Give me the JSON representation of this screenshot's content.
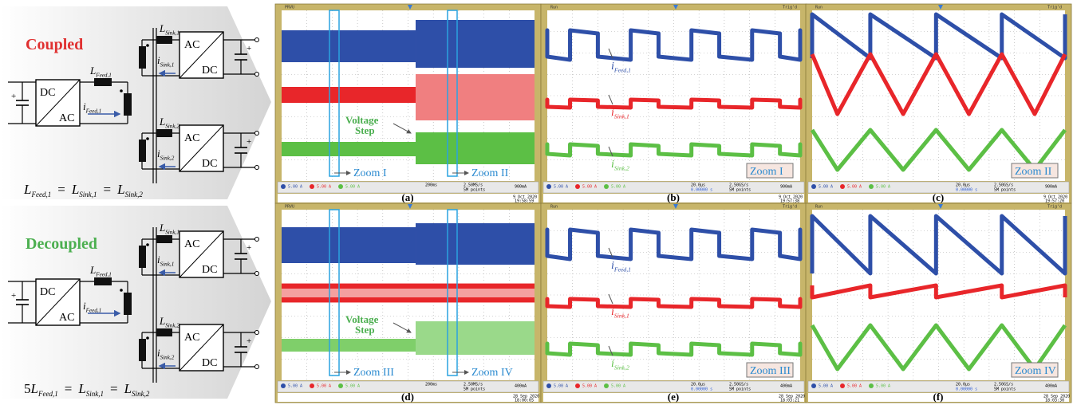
{
  "circuits": [
    {
      "title": "Coupled",
      "plus": "+",
      "source": {
        "top": "DC",
        "bottom": "AC"
      },
      "feed_inductor": {
        "sym": "L",
        "sub": "Feed,1"
      },
      "feed_current": {
        "sym": "i",
        "sub": "Feed,1"
      },
      "sinks": [
        {
          "inductor": {
            "sym": "L",
            "sub": "Sink,1"
          },
          "current": {
            "sym": "i",
            "sub": "Sink,1"
          },
          "top": "AC",
          "bottom": "DC"
        },
        {
          "inductor": {
            "sym": "L",
            "sub": "Sink,2"
          },
          "current": {
            "sym": "i",
            "sub": "Sink,2"
          },
          "top": "AC",
          "bottom": "DC"
        }
      ],
      "equation": {
        "relation": "=",
        "terms": [
          {
            "sym": "L",
            "sub": "Feed,1"
          },
          {
            "sym": "L",
            "sub": "Sink,1"
          },
          {
            "sym": "L",
            "sub": "Sink,2"
          }
        ]
      }
    },
    {
      "title": "Decoupled",
      "plus": "+",
      "source": {
        "top": "DC",
        "bottom": "AC"
      },
      "feed_inductor": {
        "sym": "L",
        "sub": "Feed,1"
      },
      "feed_current": {
        "sym": "i",
        "sub": "Feed,1"
      },
      "sinks": [
        {
          "inductor": {
            "sym": "L",
            "sub": "Sink,1"
          },
          "current": {
            "sym": "i",
            "sub": "Sink,1"
          },
          "top": "AC",
          "bottom": "DC"
        },
        {
          "inductor": {
            "sym": "L",
            "sub": "Sink,2"
          },
          "current": {
            "sym": "i",
            "sub": "Sink,2"
          },
          "top": "AC",
          "bottom": "DC"
        }
      ],
      "equation": {
        "coefficient": "5",
        "relation": "=",
        "terms": [
          {
            "sym": "L",
            "sub": "Feed,1"
          },
          {
            "sym": "L",
            "sub": "Sink,1"
          },
          {
            "sym": "L",
            "sub": "Sink,2"
          }
        ]
      }
    }
  ],
  "panels": [
    {
      "label": "(a)",
      "header": "PRVU",
      "channels": [
        "5.00 A",
        "5.00 A",
        "5.00 A"
      ],
      "timebase": "200ms",
      "rate": "2.50MS/s",
      "points": "5M points",
      "trigger": "900mA",
      "date": "9 Oct 2020",
      "time": "19:58:59",
      "zooms": [
        "Zoom I",
        "Zoom II"
      ],
      "annotation": [
        "Voltage",
        "Step"
      ]
    },
    {
      "label": "(b)",
      "header": "Run",
      "trig_state": "Trig'd",
      "channels": [
        "5.00 A",
        "5.00 A",
        "5.00 A"
      ],
      "timebase": "20.0µs",
      "offset": "0.00000 s",
      "rate": "2.50GS/s",
      "points": "5M points",
      "trigger": "900mA",
      "date": "9 Oct 2020",
      "time": "19:57:38",
      "zoom_tag": "Zoom I",
      "traces": [
        {
          "sym": "i",
          "sub": "Feed,1"
        },
        {
          "sym": "i",
          "sub": "Sink,1"
        },
        {
          "sym": "i",
          "sub": "Sink,2"
        }
      ]
    },
    {
      "label": "(c)",
      "header": "Run",
      "trig_state": "Trig'd",
      "channels": [
        "5.00 A",
        "5.00 A",
        "5.00 A"
      ],
      "timebase": "20.0µs",
      "offset": "0.00000 s",
      "rate": "2.50GS/s",
      "points": "5M points",
      "trigger": "900mA",
      "date": "9 Oct 2020",
      "time": "19:57:20",
      "zoom_tag": "Zoom II"
    },
    {
      "label": "(d)",
      "header": "PRVU",
      "channels": [
        "5.00 A",
        "5.00 A",
        "5.00 A"
      ],
      "timebase": "200ms",
      "rate": "2.50MS/s",
      "points": "5M points",
      "trigger": "400mA",
      "date": "28 Sep 2020",
      "time": "18:00:05",
      "zooms": [
        "Zoom III",
        "Zoom IV"
      ],
      "annotation": [
        "Voltage",
        "Step"
      ]
    },
    {
      "label": "(e)",
      "header": "Run",
      "trig_state": "Trig'd",
      "channels": [
        "5.00 A",
        "5.00 A",
        "5.00 A"
      ],
      "timebase": "20.0µs",
      "offset": "0.00000 s",
      "rate": "2.50GS/s",
      "points": "5M points",
      "trigger": "400mA",
      "date": "28 Sep 2020",
      "time": "18:03:21",
      "zoom_tag": "Zoom III",
      "traces": [
        {
          "sym": "i",
          "sub": "Feed,1"
        },
        {
          "sym": "i",
          "sub": "Sink,1"
        },
        {
          "sym": "i",
          "sub": "Sink,2"
        }
      ]
    },
    {
      "label": "(f)",
      "header": "Run",
      "trig_state": "Trig'd",
      "channels": [
        "5.00 A",
        "5.00 A",
        "5.00 A"
      ],
      "timebase": "20.0µs",
      "offset": "0.00000 s",
      "rate": "2.50GS/s",
      "points": "5M points",
      "trigger": "400mA",
      "date": "28 Sep 2020",
      "time": "18:03:30",
      "zoom_tag": "Zoom IV"
    }
  ]
}
